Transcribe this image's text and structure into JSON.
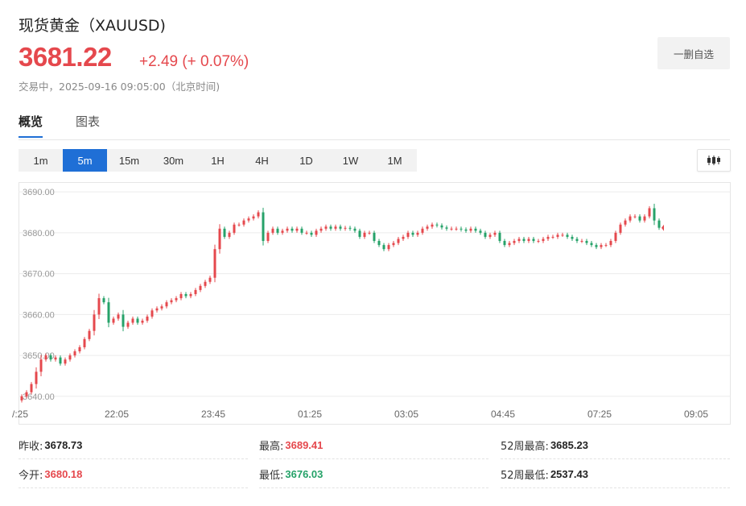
{
  "header": {
    "title": "现货黄金（XAUUSD)",
    "price": "3681.22",
    "change": "+2.49 (+ 0.07%)",
    "status": "交易中，2025-09-16 09:05:00（北京时间)",
    "fav_label": "一删自选"
  },
  "tabs": [
    {
      "label": "概览",
      "active": true
    },
    {
      "label": "图表",
      "active": false
    }
  ],
  "periods": [
    {
      "label": "1m",
      "active": false
    },
    {
      "label": "5m",
      "active": true
    },
    {
      "label": "15m",
      "active": false
    },
    {
      "label": "30m",
      "active": false
    },
    {
      "label": "1H",
      "active": false
    },
    {
      "label": "4H",
      "active": false
    },
    {
      "label": "1D",
      "active": false
    },
    {
      "label": "1W",
      "active": false
    },
    {
      "label": "1M",
      "active": false
    }
  ],
  "colors": {
    "up": "#e5484d",
    "down": "#26a269",
    "accent": "#1f6fd6"
  },
  "chart_data": {
    "type": "candlestick",
    "y_ticks": [
      "3690.00",
      "3680.00",
      "3670.00",
      "3660.00",
      "3650.00",
      "3640.00"
    ],
    "ylim": [
      3638,
      3692
    ],
    "x_ticks": [
      {
        "label": "/:25",
        "i": 0
      },
      {
        "label": "22:05",
        "i": 20
      },
      {
        "label": "23:45",
        "i": 40
      },
      {
        "label": "01:25",
        "i": 60
      },
      {
        "label": "03:05",
        "i": 80
      },
      {
        "label": "04:45",
        "i": 100
      },
      {
        "label": "07:25",
        "i": 120
      },
      {
        "label": "09:05",
        "i": 140
      }
    ],
    "n_slots": 142,
    "closes": [
      3640,
      3641,
      3643,
      3646,
      3649,
      3650,
      3649,
      3649.5,
      3648,
      3649,
      3650,
      3651,
      3652,
      3654,
      3656,
      3660,
      3664,
      3663,
      3658,
      3659,
      3660,
      3657,
      3658,
      3659,
      3658,
      3658.5,
      3659.5,
      3661,
      3661.5,
      3662,
      3663,
      3663.5,
      3664,
      3665,
      3664.5,
      3665,
      3666,
      3667,
      3668,
      3669,
      3676,
      3681,
      3679,
      3680,
      3682,
      3682,
      3683,
      3683.5,
      3684,
      3685,
      3678,
      3680,
      3681,
      3680,
      3680.5,
      3681,
      3680.5,
      3681,
      3680,
      3680,
      3679.5,
      3680.5,
      3681,
      3681.5,
      3681,
      3681.5,
      3681,
      3681.2,
      3681,
      3680.5,
      3679,
      3680,
      3680,
      3678,
      3677,
      3676,
      3677,
      3677.5,
      3678.5,
      3679,
      3680,
      3679.5,
      3680,
      3681,
      3681.5,
      3682,
      3681.8,
      3681.3,
      3681,
      3681,
      3681,
      3680.8,
      3680.5,
      3681,
      3680.5,
      3680,
      3679,
      3679.5,
      3680,
      3678,
      3677,
      3677.5,
      3678,
      3678.5,
      3678,
      3678.5,
      3678,
      3678,
      3678.5,
      3679,
      3679,
      3679.5,
      3679.5,
      3679,
      3678.5,
      3678,
      3678,
      3677.5,
      3677,
      3676.5,
      3677,
      3677,
      3678,
      3680,
      3682,
      3683,
      3684,
      3684,
      3683,
      3684,
      3686,
      3683,
      3681.22
    ],
    "last": {
      "close": 3681.22
    },
    "high": "3689.41",
    "low": "3676.03"
  },
  "stats": [
    {
      "label": "昨收:",
      "value": "3678.73",
      "color": "#222"
    },
    {
      "label": "最高:",
      "value": "3689.41",
      "color": "#e5484d"
    },
    {
      "label": "52周最高:",
      "value": "3685.23",
      "color": "#222"
    },
    {
      "label": "今开:",
      "value": "3680.18",
      "color": "#e5484d"
    },
    {
      "label": "最低:",
      "value": "3676.03",
      "color": "#26a269"
    },
    {
      "label": "52周最低:",
      "value": "2537.43",
      "color": "#222"
    }
  ]
}
